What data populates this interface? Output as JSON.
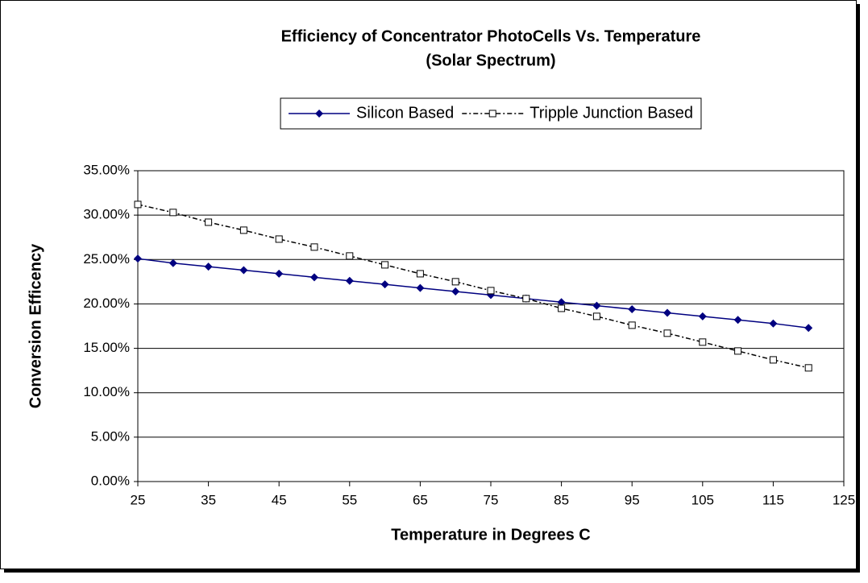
{
  "chart_data": {
    "type": "line",
    "title": "Efficiency of Concentrator PhotoCells Vs. Temperature",
    "subtitle": "(Solar Spectrum)",
    "x_label": "Temperature in Degrees C",
    "y_label": "Conversion Efficency",
    "x": [
      25,
      30,
      35,
      40,
      45,
      50,
      55,
      60,
      65,
      70,
      75,
      80,
      85,
      90,
      95,
      100,
      105,
      110,
      115,
      120
    ],
    "series": [
      {
        "name": "Silicon Based",
        "color": "#000080",
        "marker": "diamond",
        "line": "solid",
        "values": [
          25.1,
          24.6,
          24.2,
          23.8,
          23.4,
          23.0,
          22.6,
          22.2,
          21.8,
          21.4,
          21.0,
          20.6,
          20.2,
          19.8,
          19.4,
          19.0,
          18.6,
          18.2,
          17.8,
          17.3
        ]
      },
      {
        "name": "Tripple Junction Based",
        "color": "#000000",
        "marker": "square",
        "line": "dashdot",
        "values": [
          31.2,
          30.3,
          29.2,
          28.3,
          27.3,
          26.4,
          25.4,
          24.4,
          23.4,
          22.5,
          21.5,
          20.6,
          19.5,
          18.6,
          17.6,
          16.7,
          15.7,
          14.7,
          13.7,
          12.8
        ]
      }
    ],
    "xlim": [
      25,
      125
    ],
    "xticks": [
      25,
      35,
      45,
      55,
      65,
      75,
      85,
      95,
      105,
      115,
      125
    ],
    "ylim": [
      0,
      35
    ],
    "yticks": [
      {
        "value": 0,
        "label": "0.00%"
      },
      {
        "value": 5,
        "label": "5.00%"
      },
      {
        "value": 10,
        "label": "10.00%"
      },
      {
        "value": 15,
        "label": "15.00%"
      },
      {
        "value": 20,
        "label": "20.00%"
      },
      {
        "value": 25,
        "label": "25.00%"
      },
      {
        "value": 30,
        "label": "30.00%"
      },
      {
        "value": 35,
        "label": "35.00%"
      }
    ],
    "grid": true,
    "legend": "top"
  }
}
